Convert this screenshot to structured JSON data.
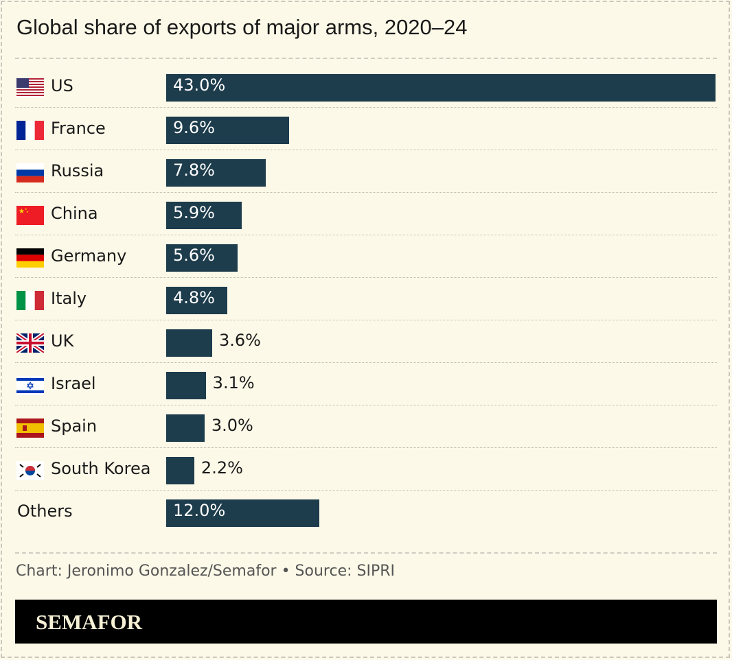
{
  "chart_data": {
    "type": "bar",
    "orientation": "horizontal",
    "title": "Global share of exports of major arms, 2020–24",
    "categories": [
      "US",
      "France",
      "Russia",
      "China",
      "Germany",
      "Italy",
      "UK",
      "Israel",
      "Spain",
      "South Korea",
      "Others"
    ],
    "values": [
      43.0,
      9.6,
      7.8,
      5.9,
      5.6,
      4.8,
      3.6,
      3.1,
      3.0,
      2.2,
      12.0
    ],
    "labels": [
      "43.0%",
      "9.6%",
      "7.8%",
      "5.9%",
      "5.6%",
      "4.8%",
      "3.6%",
      "3.1%",
      "3.0%",
      "2.2%",
      "12.0%"
    ],
    "flags": [
      "us-flag",
      "france-flag",
      "russia-flag",
      "china-flag",
      "germany-flag",
      "italy-flag",
      "uk-flag",
      "israel-flag",
      "spain-flag",
      "south-korea-flag",
      ""
    ],
    "xlim": [
      0,
      43.0
    ],
    "grid": false,
    "bar_color": "#1d3c4c"
  },
  "footer": {
    "credit": "Chart: Jeronimo Gonzalez/Semafor • Source: SIPRI",
    "brand": "SEMAFOR"
  }
}
